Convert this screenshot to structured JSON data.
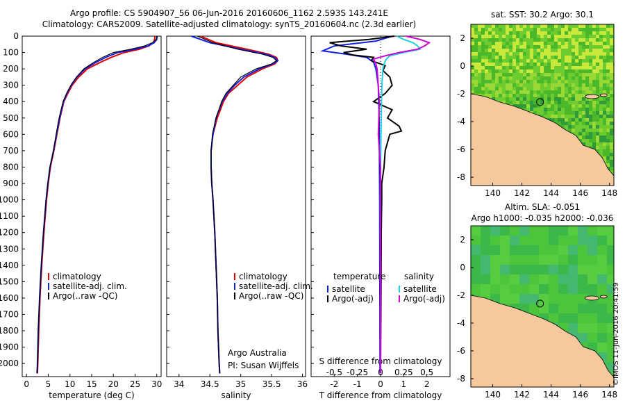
{
  "titles": {
    "line1": "Argo profile: CS 5904907_56 06-Jun-2016 20160606_1162 2.593S 143.241E",
    "line2": "Climatology: CARS2009. Satellite-adjusted climatology: synTS_20160604.nc (2.3d earlier)"
  },
  "stamp": "©IMOS 11-Jun-2016 20:41:59",
  "colors": {
    "climatology": "#e00000",
    "satellite": "#1020e0",
    "argo": "#000000",
    "argo_s": "#d000d0",
    "sat_s": "#20d0e0",
    "land": "#f6c89e"
  },
  "chart_data": [
    {
      "type": "line",
      "name": "temperature",
      "xlabel": "temperature (deg C)",
      "xticks": [
        0,
        5,
        10,
        15,
        20,
        25,
        30
      ],
      "xlim": [
        -1,
        31
      ],
      "ylim": [
        2080,
        0
      ],
      "yticks": [
        0,
        100,
        200,
        300,
        400,
        500,
        600,
        700,
        800,
        900,
        1000,
        1100,
        1200,
        1300,
        1400,
        1500,
        1600,
        1700,
        1800,
        1900,
        2000
      ],
      "legend": [
        "climatology",
        "satellite-adj. clim.",
        "Argo(..raw -QC)"
      ],
      "series": [
        {
          "key": "climatology",
          "depth": [
            0,
            20,
            40,
            60,
            80,
            100,
            130,
            160,
            200,
            250,
            300,
            350,
            400,
            500,
            600,
            700,
            800,
            900,
            1000,
            1200,
            1400,
            1600,
            1800,
            2000,
            2060
          ],
          "values": [
            29.6,
            29.5,
            29.2,
            28.2,
            26.0,
            22.5,
            19.5,
            17.0,
            14.0,
            12.0,
            10.5,
            9.5,
            8.6,
            7.7,
            7.0,
            6.3,
            5.5,
            5.0,
            4.6,
            4.0,
            3.5,
            3.1,
            2.8,
            2.6,
            2.5
          ]
        },
        {
          "key": "satellite",
          "depth": [
            0,
            20,
            40,
            60,
            80,
            100,
            130,
            160,
            200,
            250,
            300,
            350,
            400,
            500,
            600,
            700,
            800,
            900,
            1000,
            1200,
            1400,
            1600,
            1800,
            2000,
            2060
          ],
          "values": [
            30.1,
            30.0,
            29.4,
            28.0,
            25.0,
            21.0,
            18.2,
            16.0,
            13.5,
            11.6,
            10.3,
            9.3,
            8.5,
            7.6,
            6.9,
            6.2,
            5.4,
            4.9,
            4.5,
            3.9,
            3.4,
            3.0,
            2.7,
            2.5,
            2.4
          ]
        },
        {
          "key": "argo",
          "depth": [
            0,
            20,
            40,
            60,
            80,
            100,
            130,
            160,
            200,
            250,
            300,
            350,
            400,
            500,
            600,
            700,
            800,
            900,
            1000,
            1200,
            1400,
            1600,
            1800,
            2000,
            2060
          ],
          "values": [
            30.0,
            29.9,
            29.0,
            27.2,
            24.0,
            20.0,
            17.5,
            15.5,
            13.2,
            11.5,
            10.2,
            9.2,
            8.4,
            7.5,
            6.8,
            6.2,
            5.4,
            4.9,
            4.5,
            3.9,
            3.4,
            3.0,
            2.7,
            2.5,
            2.4
          ]
        }
      ]
    },
    {
      "type": "line",
      "name": "salinity",
      "xlabel": "salinity",
      "xticks": [
        34,
        34.5,
        35,
        35.5,
        36
      ],
      "xlim": [
        33.8,
        36.05
      ],
      "ylim": [
        2080,
        0
      ],
      "legend": [
        "climatology",
        "satellite-adj. clim.",
        "Argo(..raw -QC)"
      ],
      "credit": [
        "Argo Australia",
        "PI: Susan Wijffels"
      ],
      "series": [
        {
          "key": "climatology",
          "depth": [
            0,
            40,
            80,
            110,
            130,
            150,
            170,
            200,
            250,
            300,
            350,
            400,
            500,
            600,
            700,
            800,
            900,
            1000,
            1200,
            1400,
            1600,
            1800,
            2000,
            2060
          ],
          "values": [
            34.35,
            34.6,
            35.1,
            35.45,
            35.58,
            35.6,
            35.55,
            35.35,
            35.1,
            34.95,
            34.8,
            34.72,
            34.62,
            34.55,
            34.52,
            34.52,
            34.53,
            34.55,
            34.58,
            34.6,
            34.62,
            34.63,
            34.65,
            34.66
          ]
        },
        {
          "key": "satellite",
          "depth": [
            0,
            40,
            80,
            110,
            130,
            150,
            170,
            200,
            250,
            300,
            350,
            400,
            500,
            600,
            700,
            800,
            900,
            1000,
            1200,
            1400,
            1600,
            1800,
            2000,
            2060
          ],
          "values": [
            34.2,
            34.5,
            35.0,
            35.4,
            35.55,
            35.6,
            35.52,
            35.3,
            35.05,
            34.9,
            34.78,
            34.7,
            34.6,
            34.55,
            34.52,
            34.52,
            34.53,
            34.55,
            34.58,
            34.6,
            34.62,
            34.63,
            34.65,
            34.66
          ]
        },
        {
          "key": "argo",
          "depth": [
            0,
            40,
            80,
            110,
            130,
            150,
            170,
            200,
            250,
            300,
            350,
            400,
            500,
            600,
            700,
            800,
            900,
            1000,
            1200,
            1400,
            1600,
            1800,
            2000,
            2060
          ],
          "values": [
            34.3,
            34.55,
            34.95,
            35.35,
            35.52,
            35.58,
            35.5,
            35.25,
            35.0,
            34.88,
            34.76,
            34.69,
            34.6,
            34.54,
            34.52,
            34.52,
            34.53,
            34.55,
            34.58,
            34.6,
            34.62,
            34.63,
            34.65,
            34.66
          ]
        }
      ]
    },
    {
      "type": "line",
      "name": "differences",
      "xlabel_bottom": "T difference from climatology",
      "xlabel_top": "S difference from climatology",
      "xticks_T": [
        -2,
        -1,
        0,
        1,
        2
      ],
      "xticks_S": [
        -0.5,
        -0.25,
        0,
        0.25,
        0.5
      ],
      "xlim_T": [
        -3,
        3
      ],
      "ylim": [
        2080,
        0
      ],
      "legend_headers": [
        "temperature",
        "salinity"
      ],
      "legend_T": [
        "satellite",
        "Argo(-adj)"
      ],
      "legend_S": [
        "satellite",
        "Argo(-adj)"
      ],
      "series": [
        {
          "key": "satellite",
          "depth": [
            0,
            30,
            60,
            90,
            110,
            130,
            160,
            200,
            250,
            300,
            400,
            500,
            700,
            1000,
            1500,
            2060
          ],
          "values": [
            0.5,
            -0.2,
            -2.0,
            -2.5,
            -1.5,
            -0.6,
            -0.3,
            -0.2,
            -0.15,
            -0.1,
            -0.08,
            -0.06,
            -0.05,
            -0.04,
            -0.03,
            -0.02
          ]
        },
        {
          "key": "argo",
          "depth": [
            0,
            20,
            40,
            60,
            80,
            100,
            115,
            130,
            150,
            180,
            210,
            250,
            300,
            350,
            400,
            450,
            500,
            550,
            580,
            600,
            650,
            700,
            800,
            900,
            1000,
            1200,
            1500,
            2060
          ],
          "values": [
            0.6,
            -0.5,
            -2.2,
            -1.7,
            -0.6,
            -1.6,
            -1.2,
            -0.3,
            -0.4,
            0.2,
            0.1,
            0.4,
            0.5,
            0.2,
            -0.3,
            0.5,
            0.3,
            0.8,
            0.9,
            0.4,
            0.3,
            0.2,
            0.15,
            0.05,
            0.05,
            0.03,
            0.02,
            0.0
          ]
        },
        {
          "key": "sat_s",
          "depth": [
            0,
            20,
            40,
            60,
            80,
            100,
            120,
            140,
            170,
            200,
            300,
            400,
            600,
            800,
            1000,
            1500,
            2060
          ],
          "values": [
            0.7,
            1.0,
            1.4,
            1.6,
            1.7,
            1.0,
            0.4,
            0.25,
            0.15,
            0.1,
            0.06,
            0.04,
            0.02,
            0.0,
            -0.01,
            0.0,
            0.0
          ]
        },
        {
          "key": "argo_s",
          "depth": [
            0,
            20,
            40,
            60,
            80,
            100,
            120,
            140,
            170,
            200,
            300,
            400,
            600,
            700,
            800,
            1000,
            1500,
            2060
          ],
          "values": [
            1.1,
            1.7,
            2.1,
            1.9,
            1.6,
            0.8,
            0.2,
            -0.3,
            -0.2,
            -0.15,
            -0.1,
            -0.05,
            -0.1,
            -0.05,
            0.0,
            0.0,
            0.0,
            0.0
          ]
        }
      ]
    },
    {
      "type": "heatmap",
      "name": "sst_map",
      "title": "sat. SST: 30.2 Argo: 30.1",
      "xticks": [
        140,
        142,
        144,
        146,
        148
      ],
      "yticks": [
        2,
        0,
        -2,
        -4,
        -6,
        -8
      ],
      "xlim": [
        138.5,
        148.3
      ],
      "ylim": [
        -8.6,
        3.0
      ],
      "argo_position": {
        "lon": 143.241,
        "lat": -2.593
      }
    },
    {
      "type": "heatmap",
      "name": "sla_map",
      "title": "Altim. SLA: -0.051",
      "subtitle": "Argo h1000: -0.035 h2000: -0.036",
      "xticks": [
        140,
        142,
        144,
        146,
        148
      ],
      "yticks": [
        2,
        0,
        -2,
        -4,
        -6,
        -8
      ],
      "xlim": [
        138.5,
        148.3
      ],
      "ylim": [
        -8.6,
        3.0
      ],
      "argo_position": {
        "lon": 143.241,
        "lat": -2.593
      }
    }
  ]
}
